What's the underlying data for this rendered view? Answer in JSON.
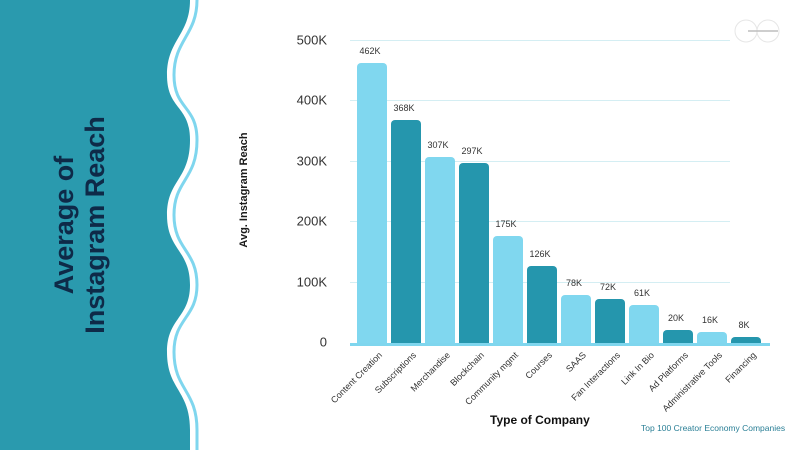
{
  "panel": {
    "title_line1": "Average of",
    "title_line2": "Instagram Reach",
    "bg_color": "#2a9aae",
    "wave_stroke_color": "#7fd6ee"
  },
  "logo": {
    "icon": "brand-logo-icon"
  },
  "chart_data": {
    "type": "bar",
    "title": "Average of Instagram Reach",
    "xlabel": "Type of Company",
    "ylabel": "Avg. Instagram Reach",
    "ylim": [
      0,
      500000
    ],
    "yticks": [
      "0",
      "100K",
      "200K",
      "300K",
      "400K",
      "500K"
    ],
    "grid": true,
    "legend": null,
    "categories": [
      "Content Creation",
      "Subscriptions",
      "Merchandise",
      "Blockchain",
      "Community mgmt",
      "Courses",
      "SAAS",
      "Fan Interactions",
      "Link In Bio",
      "Ad Platforms",
      "Administrative Tools",
      "Financing"
    ],
    "values": [
      462000,
      368000,
      307000,
      297000,
      175000,
      126000,
      78000,
      72000,
      61000,
      20000,
      16000,
      8000
    ],
    "value_labels": [
      "462K",
      "368K",
      "307K",
      "297K",
      "175K",
      "126K",
      "78K",
      "72K",
      "61K",
      "20K",
      "16K",
      "8K"
    ],
    "bar_colors": [
      "#80d7ef",
      "#2596ad",
      "#80d7ef",
      "#2596ad",
      "#80d7ef",
      "#2596ad",
      "#80d7ef",
      "#2596ad",
      "#80d7ef",
      "#2596ad",
      "#80d7ef",
      "#2596ad"
    ],
    "source_note": "Top 100 Creator Economy Companies"
  }
}
